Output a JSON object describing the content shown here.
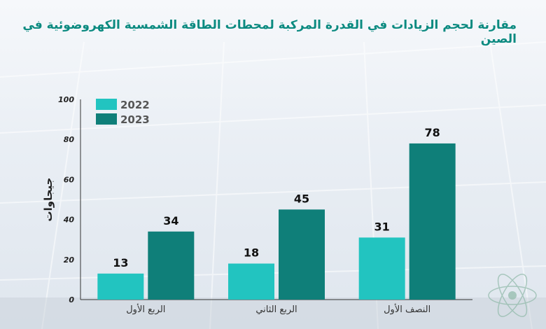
{
  "title": "مقارنة لحجم الزيادات في القدرة المركبة لمحطات الطاقة الشمسية الكهروضوئية في الصين",
  "colors": {
    "title": "#0b8a80",
    "series_2022": "#22c4c0",
    "series_2023": "#0f7f79"
  },
  "chart_data": {
    "type": "bar",
    "categories": [
      "الربع الأول",
      "الربع الثاني",
      "النصف الأول"
    ],
    "series": [
      {
        "name": "2022",
        "values": [
          13,
          18,
          31
        ]
      },
      {
        "name": "2023",
        "values": [
          34,
          45,
          78
        ]
      }
    ],
    "ylabel": "جيجاوات",
    "xlabel": "",
    "ylim": [
      0,
      100
    ],
    "yticks": [
      0,
      20,
      40,
      60,
      80,
      100
    ],
    "legend": "top-left",
    "grid": false
  }
}
